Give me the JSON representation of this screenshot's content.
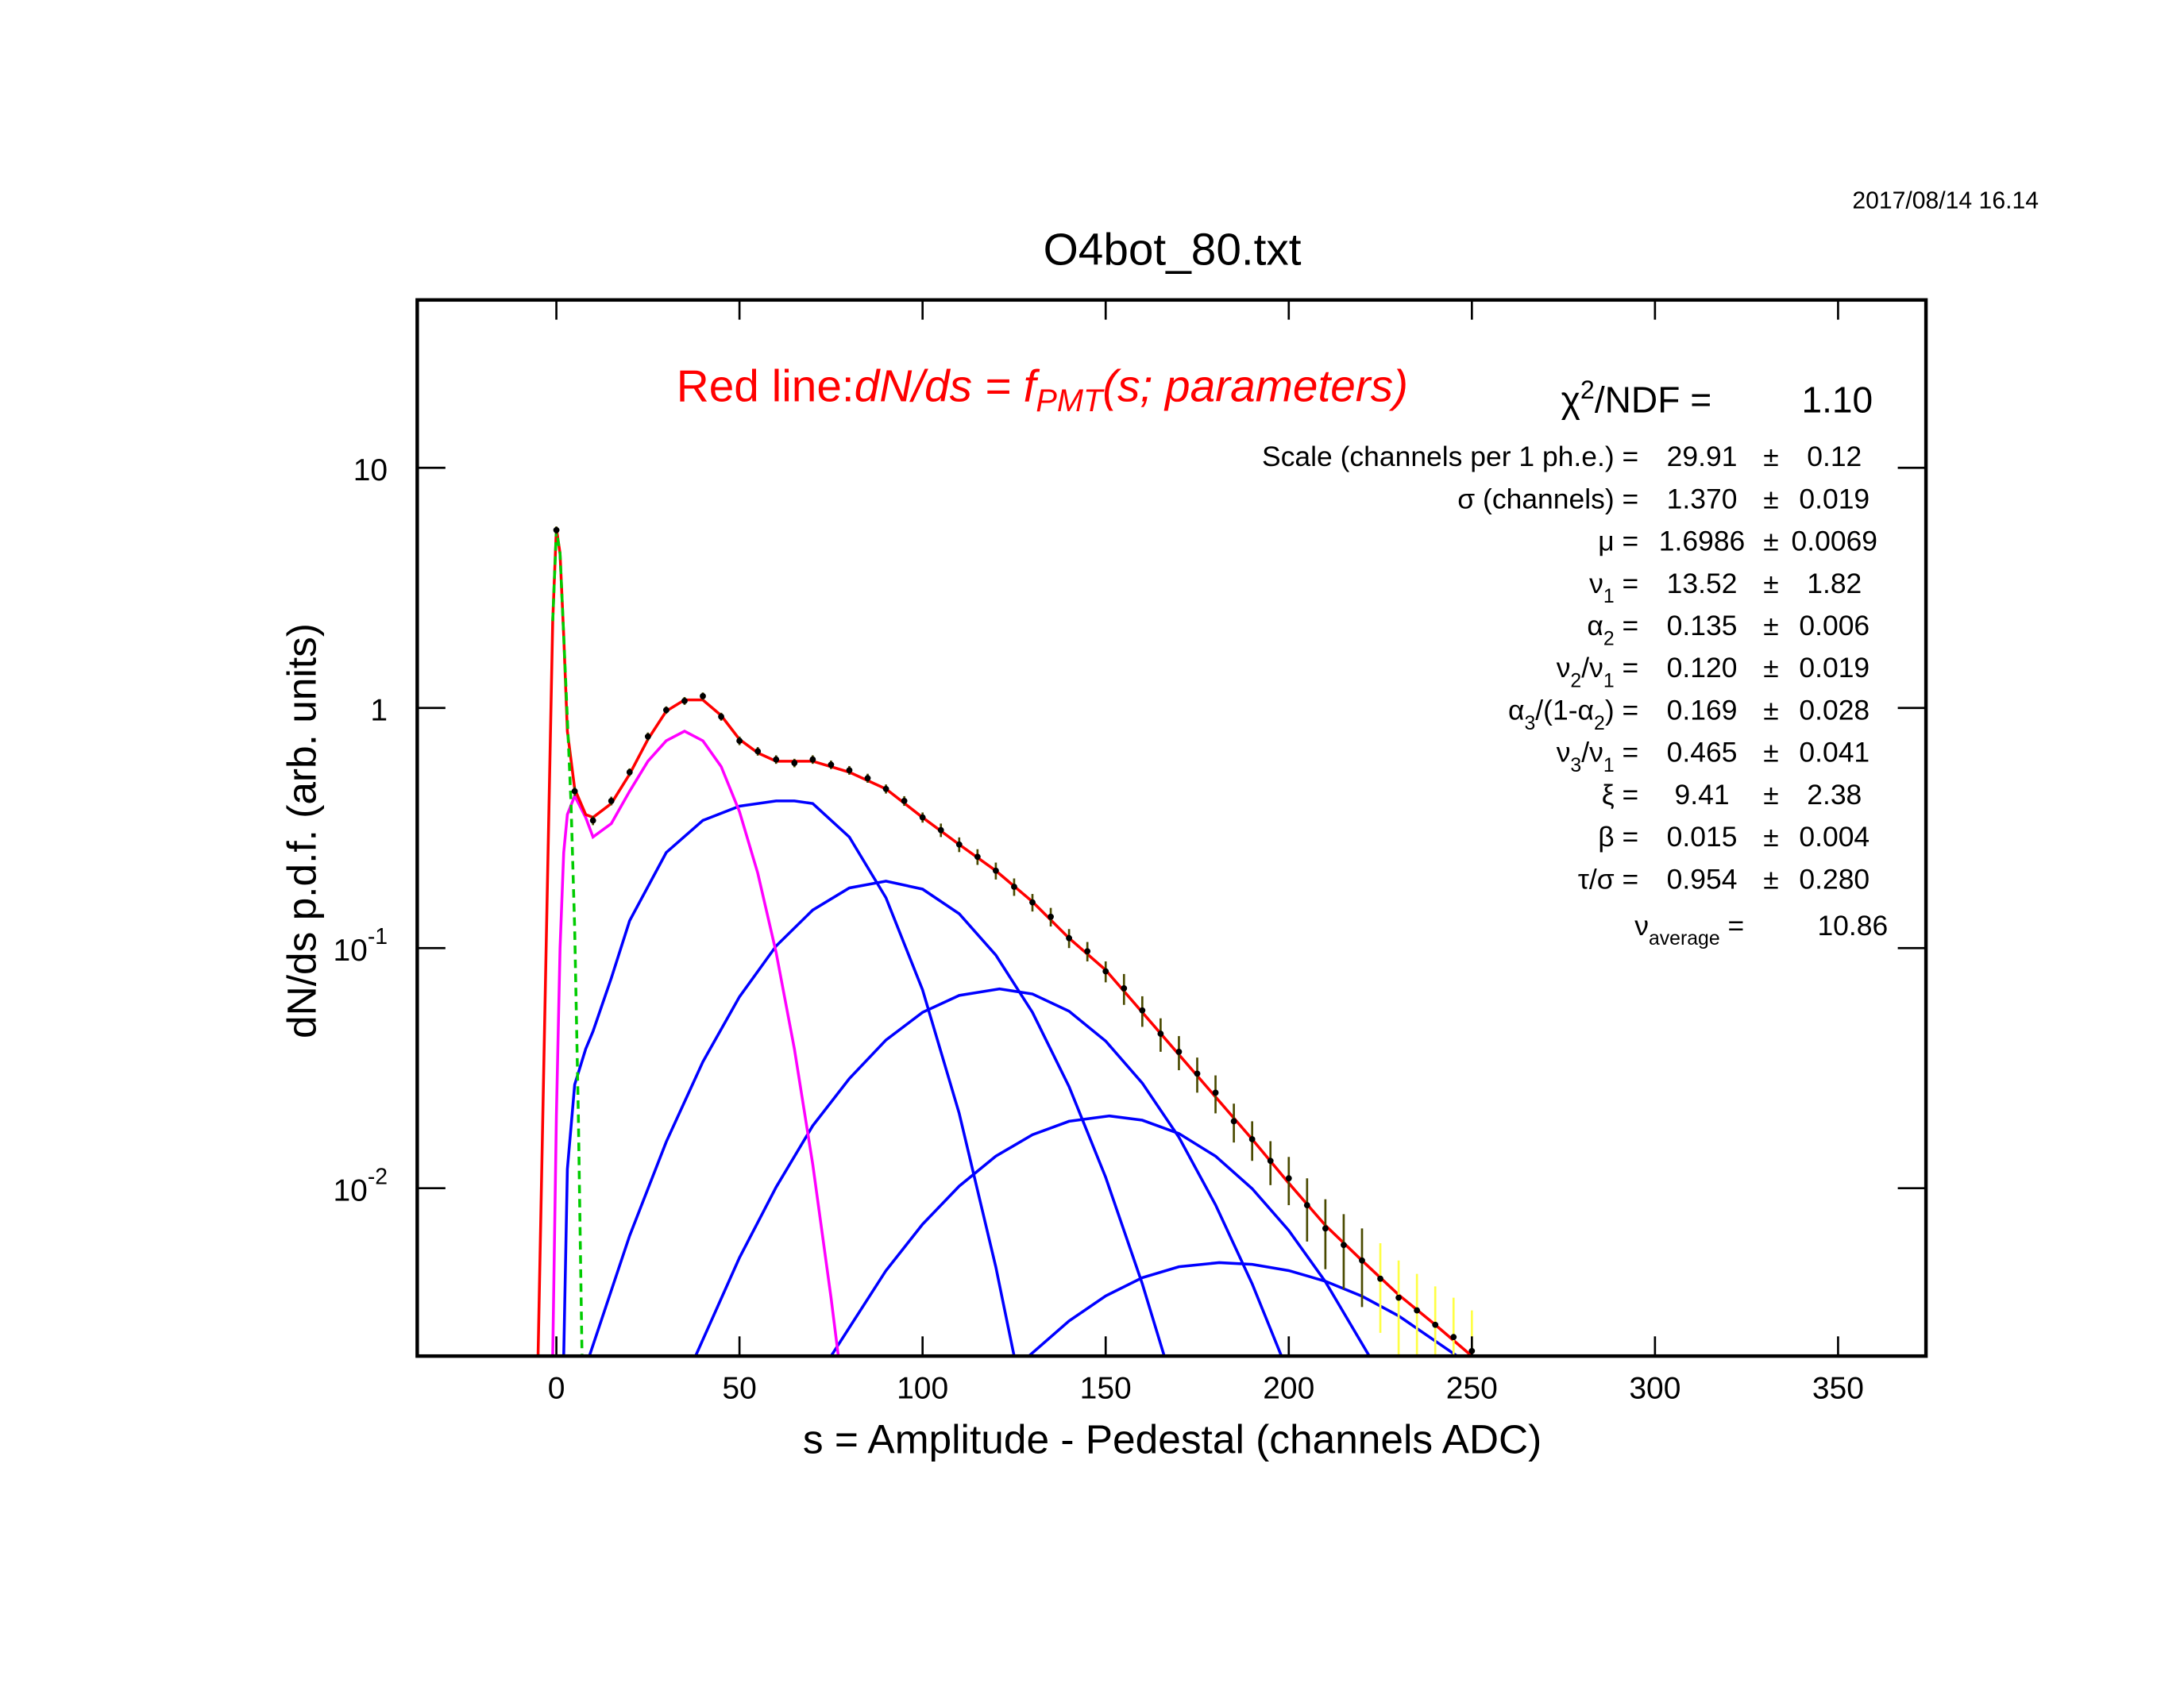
{
  "chart_data": {
    "type": "line",
    "title": "O4bot_80.txt",
    "timestamp": "2017/08/14   16.14",
    "xlabel": "s = Amplitude - Pedestal (channels ADC)",
    "ylabel": "dN/ds p.d.f. (arb. units)",
    "log_y": true,
    "xlim": [
      -38,
      374
    ],
    "ylim": [
      0.002,
      50
    ],
    "xticks": [
      0,
      50,
      100,
      150,
      200,
      250,
      300,
      350
    ],
    "yticks": [
      {
        "value": 10,
        "label": "10"
      },
      {
        "value": 1,
        "label": "1"
      },
      {
        "value": 0.1,
        "label": "10",
        "sup": "-1"
      },
      {
        "value": 0.01,
        "label": "10",
        "sup": "-2"
      }
    ],
    "fit_label": [
      {
        "text": "Red line:"
      },
      {
        "text": "dN/ds = f",
        "italic": true
      },
      {
        "sub": "PMT",
        "italic": true
      },
      {
        "text": "(s; parameters)",
        "italic": true
      }
    ],
    "fit_color": "#ff0000",
    "chi2": {
      "label": [
        {
          "text": "χ"
        },
        {
          "sup": "2"
        },
        {
          "text": "/NDF   ="
        }
      ],
      "value": "1.10"
    },
    "parameters": [
      {
        "label": [
          {
            "text": "Scale (channels per 1 ph.e.) ="
          }
        ],
        "value": "29.91",
        "pm": "±",
        "error": "0.12"
      },
      {
        "label": [
          {
            "text": "σ (channels) ="
          }
        ],
        "value": "1.370",
        "pm": "±",
        "error": "0.019"
      },
      {
        "label": [
          {
            "text": "μ  ="
          }
        ],
        "value": "1.6986",
        "pm": "±",
        "error": "0.0069"
      },
      {
        "label": [
          {
            "text": "ν"
          },
          {
            "sub": "1"
          },
          {
            "text": " ="
          }
        ],
        "value": "13.52",
        "pm": "±",
        "error": "1.82"
      },
      {
        "label": [
          {
            "text": "α"
          },
          {
            "sub": "2"
          },
          {
            "text": " ="
          }
        ],
        "value": "0.135",
        "pm": "±",
        "error": "0.006"
      },
      {
        "label": [
          {
            "text": "ν"
          },
          {
            "sub": "2"
          },
          {
            "text": "/ν"
          },
          {
            "sub": "1"
          },
          {
            "text": " ="
          }
        ],
        "value": "0.120",
        "pm": "±",
        "error": "0.019"
      },
      {
        "label": [
          {
            "text": "α"
          },
          {
            "sub": "3"
          },
          {
            "text": "/(1-α"
          },
          {
            "sub": "2"
          },
          {
            "text": ") ="
          }
        ],
        "value": "0.169",
        "pm": "±",
        "error": "0.028"
      },
      {
        "label": [
          {
            "text": "ν"
          },
          {
            "sub": "3"
          },
          {
            "text": "/ν"
          },
          {
            "sub": "1"
          },
          {
            "text": " ="
          }
        ],
        "value": "0.465",
        "pm": "±",
        "error": "0.041"
      },
      {
        "label": [
          {
            "text": "ξ  ="
          }
        ],
        "value": "9.41",
        "pm": "±",
        "error": "2.38"
      },
      {
        "label": [
          {
            "text": "β  ="
          }
        ],
        "value": "0.015",
        "pm": "±",
        "error": "0.004"
      },
      {
        "label": [
          {
            "text": "τ/σ ="
          }
        ],
        "value": "0.954",
        "pm": "±",
        "error": "0.280"
      },
      {
        "label": [
          {
            "text": "ν"
          },
          {
            "sub": "average"
          },
          {
            "text": "  ="
          }
        ],
        "value": "10.86"
      }
    ],
    "series": [
      {
        "color": "#0000ff",
        "x": [
          2,
          3,
          5,
          8,
          10,
          15,
          20,
          30,
          40,
          50,
          60,
          65,
          70,
          80,
          90,
          100,
          110,
          120,
          125
        ],
        "values": [
          0.002,
          0.012,
          0.027,
          0.038,
          0.045,
          0.075,
          0.13,
          0.25,
          0.34,
          0.39,
          0.41,
          0.41,
          0.4,
          0.29,
          0.162,
          0.067,
          0.0205,
          0.0047,
          0.002
        ]
      },
      {
        "color": "#0000ff",
        "x": [
          9,
          20,
          30,
          40,
          50,
          60,
          70,
          80,
          90,
          100,
          110,
          120,
          130,
          140,
          150,
          160,
          166
        ],
        "values": [
          0.002,
          0.00634,
          0.0156,
          0.0336,
          0.0627,
          0.102,
          0.144,
          0.178,
          0.19,
          0.176,
          0.139,
          0.0935,
          0.054,
          0.0265,
          0.0111,
          0.004,
          0.002
        ]
      },
      {
        "color": "#0000ff",
        "x": [
          38,
          50,
          60,
          70,
          80,
          90,
          100,
          110,
          121,
          130,
          140,
          150,
          160,
          170,
          180,
          190,
          198
        ],
        "values": [
          0.002,
          0.00514,
          0.0101,
          0.0182,
          0.0286,
          0.0414,
          0.054,
          0.0635,
          0.0676,
          0.0644,
          0.0546,
          0.041,
          0.0274,
          0.0163,
          0.00853,
          0.004,
          0.002
        ]
      },
      {
        "color": "#0000ff",
        "x": [
          75,
          90,
          100,
          110,
          120,
          130,
          140,
          151,
          160,
          170,
          180,
          190,
          200,
          210,
          222
        ],
        "values": [
          0.002,
          0.00454,
          0.00708,
          0.0102,
          0.0136,
          0.0167,
          0.019,
          0.02,
          0.0192,
          0.0169,
          0.0136,
          0.00996,
          0.00667,
          0.00408,
          0.002
        ]
      },
      {
        "color": "#0000ff",
        "x": [
          129,
          140,
          150,
          160,
          170,
          181,
          190,
          200,
          210,
          220,
          230,
          246
        ],
        "values": [
          0.002,
          0.0028,
          0.00356,
          0.00424,
          0.00471,
          0.0049,
          0.00482,
          0.00454,
          0.0041,
          0.00355,
          0.00294,
          0.002
        ]
      },
      {
        "color": "#ff00ff",
        "x": [
          -1,
          0,
          1,
          2,
          3,
          5,
          8,
          10,
          15,
          20,
          25,
          30,
          35,
          40,
          45,
          50,
          55,
          60,
          65,
          70,
          75,
          77
        ],
        "values": [
          0.002,
          0.02,
          0.1,
          0.25,
          0.36,
          0.43,
          0.35,
          0.29,
          0.33,
          0.45,
          0.6,
          0.73,
          0.8,
          0.73,
          0.57,
          0.37,
          0.205,
          0.096,
          0.038,
          0.0126,
          0.0035,
          0.002
        ]
      },
      {
        "color": "#ff0000",
        "x": [
          -5,
          -3,
          -1,
          0,
          1,
          2,
          3,
          5,
          8,
          10,
          15,
          20,
          25,
          30,
          35,
          40,
          45,
          50,
          55,
          60,
          70,
          80,
          90,
          100,
          110,
          120,
          130,
          140,
          150,
          160,
          170,
          180,
          190,
          200,
          210,
          220,
          230,
          240,
          250
        ],
        "values": [
          0.002,
          0.07,
          2.3,
          5.6,
          4.4,
          2.0,
          0.8,
          0.46,
          0.36,
          0.35,
          0.4,
          0.53,
          0.74,
          0.97,
          1.08,
          1.08,
          0.93,
          0.74,
          0.65,
          0.6,
          0.6,
          0.54,
          0.46,
          0.35,
          0.27,
          0.21,
          0.156,
          0.11,
          0.081,
          0.054,
          0.036,
          0.024,
          0.016,
          0.0105,
          0.007,
          0.005,
          0.0036,
          0.0027,
          0.002
        ]
      },
      {
        "color": "#00cc00",
        "dash": true,
        "x": [
          -1,
          0,
          1,
          2,
          3,
          4,
          5,
          6,
          7
        ],
        "values": [
          2.3,
          5.5,
          4.4,
          2.0,
          0.9,
          0.4,
          0.12,
          0.02,
          0.002
        ]
      }
    ],
    "points": [
      {
        "color": "#000000",
        "error_color": "#4a4a00",
        "x": [
          0,
          5,
          10,
          15,
          20,
          25,
          30,
          35,
          40,
          45,
          50,
          55,
          60,
          65,
          70,
          75,
          80,
          85,
          90,
          95,
          100,
          105,
          110,
          115,
          120,
          125,
          130,
          135,
          140,
          145,
          150,
          155,
          160,
          165,
          170,
          175,
          180,
          185,
          190,
          195,
          200,
          205,
          210,
          215,
          220
        ],
        "values": [
          5.5,
          0.45,
          0.34,
          0.41,
          0.54,
          0.76,
          0.98,
          1.07,
          1.12,
          0.92,
          0.73,
          0.66,
          0.61,
          0.59,
          0.61,
          0.58,
          0.55,
          0.51,
          0.46,
          0.41,
          0.35,
          0.31,
          0.27,
          0.24,
          0.21,
          0.18,
          0.155,
          0.135,
          0.11,
          0.097,
          0.08,
          0.068,
          0.055,
          0.044,
          0.037,
          0.03,
          0.025,
          0.019,
          0.016,
          0.013,
          0.011,
          0.0085,
          0.0068,
          0.0058,
          0.005
        ],
        "errors": [
          0.2,
          0.02,
          0.015,
          0.017,
          0.02,
          0.03,
          0.035,
          0.04,
          0.04,
          0.035,
          0.03,
          0.027,
          0.025,
          0.024,
          0.025,
          0.024,
          0.023,
          0.022,
          0.02,
          0.019,
          0.017,
          0.02,
          0.019,
          0.018,
          0.017,
          0.015,
          0.013,
          0.012,
          0.01,
          0.009,
          0.008,
          0.01,
          0.008,
          0.007,
          0.006,
          0.005,
          0.0045,
          0.0035,
          0.003,
          0.0027,
          0.0025,
          0.0025,
          0.0022,
          0.002,
          0.0018
        ]
      },
      {
        "color": "#000000",
        "error_color": "#ffff44",
        "x": [
          225,
          230,
          235,
          240,
          245,
          250
        ],
        "values": [
          0.0042,
          0.0035,
          0.0031,
          0.0027,
          0.0024,
          0.0021
        ],
        "errors": [
          0.0017,
          0.0015,
          0.0013,
          0.0012,
          0.0011,
          0.001
        ]
      }
    ]
  }
}
